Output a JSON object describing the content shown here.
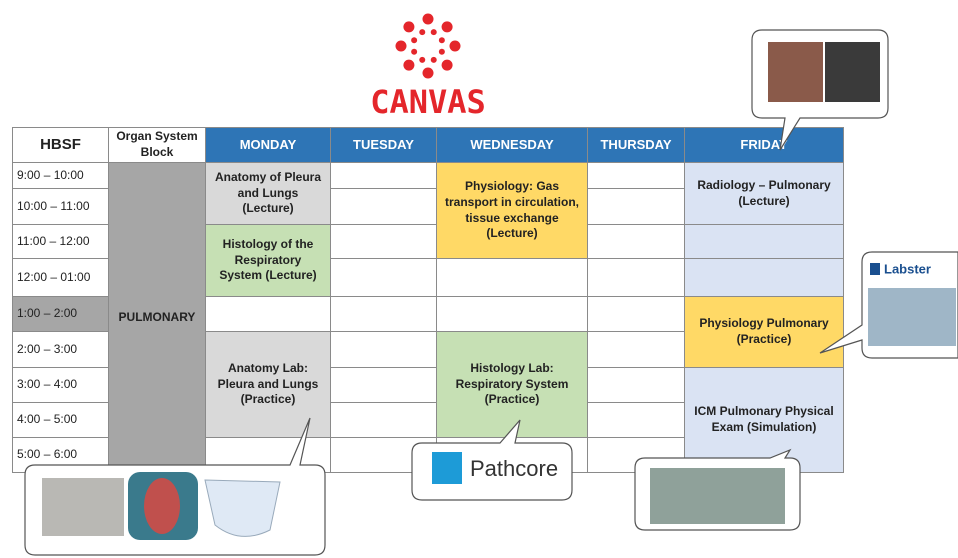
{
  "logo": {
    "text": "CANVAS"
  },
  "table": {
    "headers": [
      "HBSF",
      "Organ System Block",
      "MONDAY",
      "TUESDAY",
      "WEDNESDAY",
      "THURSDAY",
      "FRIDAY"
    ],
    "times": [
      "9:00 – 10:00",
      "10:00 – 11:00",
      "11:00 – 12:00",
      "12:00 – 01:00",
      "1:00 – 2:00",
      "2:00 – 3:00",
      "3:00 – 4:00",
      "4:00 – 5:00",
      "5:00 – 6:00"
    ],
    "block": "PULMONARY",
    "events": [
      "Anatomy of Pleura and Lungs (Lecture)",
      "Histology of the Respiratory System (Lecture)",
      "Anatomy Lab: Pleura and Lungs (Practice)",
      "Physiology: Gas transport in circulation, tissue exchange (Lecture)",
      "Histology Lab: Respiratory System (Practice)",
      "Radiology – Pulmonary (Lecture)",
      "Physiology Pulmonary (Practice)",
      "ICM Pulmonary Physical Exam (Simulation)"
    ]
  },
  "callouts": {
    "pathcore": "Pathcore",
    "labster": "Labster"
  }
}
